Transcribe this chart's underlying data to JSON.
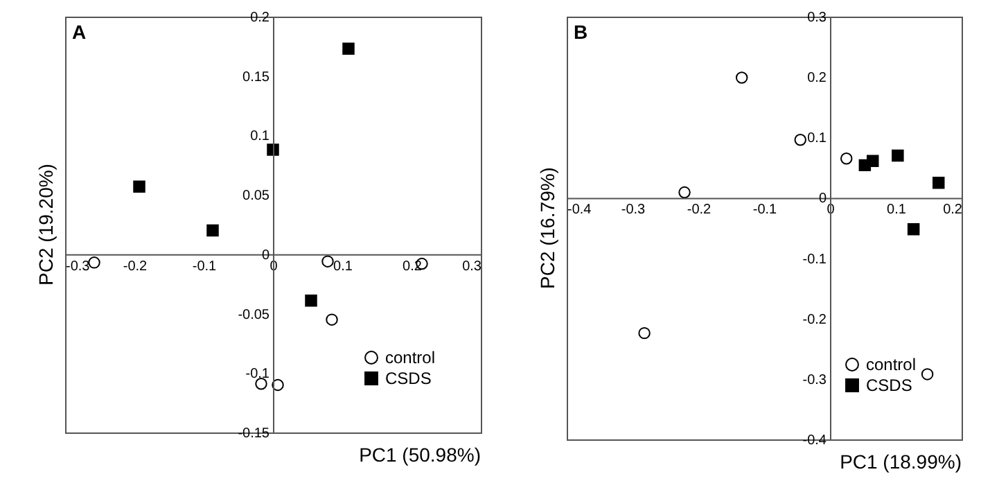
{
  "chart_data": [
    {
      "type": "scatter",
      "title": "A",
      "xlabel": "PC1 (50.98%)",
      "ylabel": "PC2 (19.20%)",
      "xlim": [
        -0.3,
        0.3
      ],
      "ylim": [
        -0.15,
        0.2
      ],
      "xticks": [
        -0.3,
        -0.2,
        -0.1,
        0,
        0.1,
        0.2,
        0.3
      ],
      "yticks": [
        -0.15,
        -0.1,
        -0.05,
        0,
        0.05,
        0.1,
        0.15,
        0.2
      ],
      "grid": false,
      "legend": "bottom right",
      "series": [
        {
          "name": "control",
          "marker": "circle",
          "color": "#ffffff",
          "x": [
            -0.258,
            0.079,
            0.215,
            0.085,
            -0.017,
            0.007
          ],
          "values": [
            -0.007,
            -0.006,
            -0.008,
            -0.055,
            -0.109,
            -0.11
          ]
        },
        {
          "name": "CSDS",
          "marker": "square",
          "color": "#000000",
          "x": [
            0.109,
            0,
            -0.193,
            -0.087,
            0.055
          ],
          "values": [
            0.173,
            0.088,
            0.057,
            0.02,
            -0.039
          ]
        }
      ]
    },
    {
      "type": "scatter",
      "title": "B",
      "xlabel": "PC1 (18.99%)",
      "ylabel": "PC2 (16.79%)",
      "xlim": [
        -0.4,
        0.2
      ],
      "ylim": [
        -0.4,
        0.3
      ],
      "xticks": [
        -0.4,
        -0.3,
        -0.2,
        -0.1,
        0,
        0.1,
        0.2
      ],
      "yticks": [
        -0.4,
        -0.3,
        -0.2,
        -0.1,
        0,
        0.1,
        0.2,
        0.3
      ],
      "grid": false,
      "legend": "bottom right",
      "series": [
        {
          "name": "control",
          "marker": "circle",
          "color": "#ffffff",
          "x": [
            -0.134,
            -0.045,
            0.025,
            -0.221,
            -0.282,
            0.148
          ],
          "values": [
            0.199,
            0.096,
            0.065,
            0.009,
            -0.224,
            -0.292
          ]
        },
        {
          "name": "CSDS",
          "marker": "square",
          "color": "#000000",
          "x": [
            0.053,
            0.065,
            0.103,
            0.165,
            0.127
          ],
          "values": [
            0.054,
            0.061,
            0.07,
            0.025,
            -0.052
          ]
        }
      ]
    }
  ]
}
